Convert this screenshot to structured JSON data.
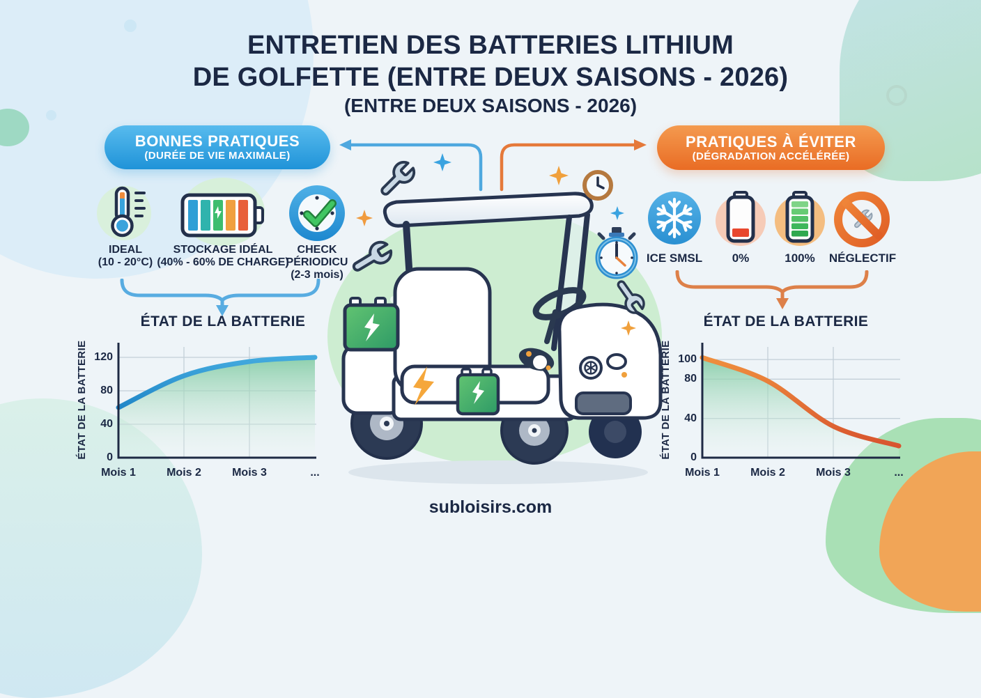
{
  "title": {
    "line1": "ENTRETIEN DES BATTERIES LITHIUM",
    "line2": "DE GOLFETTE (ENTRE DEUX SAISONS - 2026)",
    "line3": "(ENTRE DEUX SAISONS - 2026)"
  },
  "good_practices": {
    "pill_title": "BONNES PRATIQUES",
    "pill_subtitle": "(DURÉE DE VIE MAXIMALE)",
    "items": [
      {
        "icon": "thermometer-icon",
        "line1": "IDEAL",
        "line2": "(10 - 20°C)"
      },
      {
        "icon": "battery-storage-icon",
        "line1": "STOCKAGE IDÉAL",
        "line2": "(40% - 60% DE CHARGE)"
      },
      {
        "icon": "clock-check-icon",
        "line1": "CHECK",
        "line2": "PÉRIODICU",
        "line3": "(2-3 mois)"
      }
    ],
    "chart_heading": "ÉTAT DE LA BATTERIE"
  },
  "bad_practices": {
    "pill_title": "PRATIQUES À ÉVITER",
    "pill_subtitle": "(DÉGRADATION ACCÉLÉRÉE)",
    "items": [
      {
        "icon": "snowflake-icon",
        "label": "ICE SMSL"
      },
      {
        "icon": "battery-empty-icon",
        "label": "0%"
      },
      {
        "icon": "battery-full-icon",
        "label": "100%"
      },
      {
        "icon": "no-neglect-icon",
        "label": "NÉGLECTIF"
      }
    ],
    "chart_heading": "ÉTAT DE LA BATTERIE"
  },
  "footer": {
    "website": "subloisirs.com"
  },
  "colors": {
    "navy": "#1b2844",
    "blue_accent": "#2e97d8",
    "orange_accent": "#e9712e",
    "green_fill": "#8fd0a8"
  },
  "chart_data": [
    {
      "type": "area",
      "title": "ÉTAT DE LA BATTERIE",
      "ylabel": "ÉTAT DE LA BATTERIE",
      "xlabel": "",
      "categories": [
        "Mois 1",
        "Mois 2",
        "Mois 3",
        "..."
      ],
      "values": [
        60,
        98,
        115,
        120
      ],
      "yticks": [
        0,
        40,
        80,
        120
      ],
      "ylim": [
        0,
        135
      ],
      "grid": true,
      "legend": "none",
      "line_color": "#2e97d8",
      "fill": "green-gradient",
      "trend": "rising-saturating"
    },
    {
      "type": "area",
      "title": "ÉTAT DE LA BATTERIE",
      "ylabel": "ÉTAT DE LA BATTERIE",
      "xlabel": "",
      "categories": [
        "Mois 1",
        "Mois 2",
        "Mois 3",
        "..."
      ],
      "values": [
        102,
        78,
        32,
        12
      ],
      "yticks": [
        0,
        40,
        80,
        100
      ],
      "ylim": [
        0,
        115
      ],
      "grid": true,
      "legend": "none",
      "line_color": "#e0653a",
      "fill": "green-gradient",
      "trend": "declining-s-curve"
    }
  ]
}
